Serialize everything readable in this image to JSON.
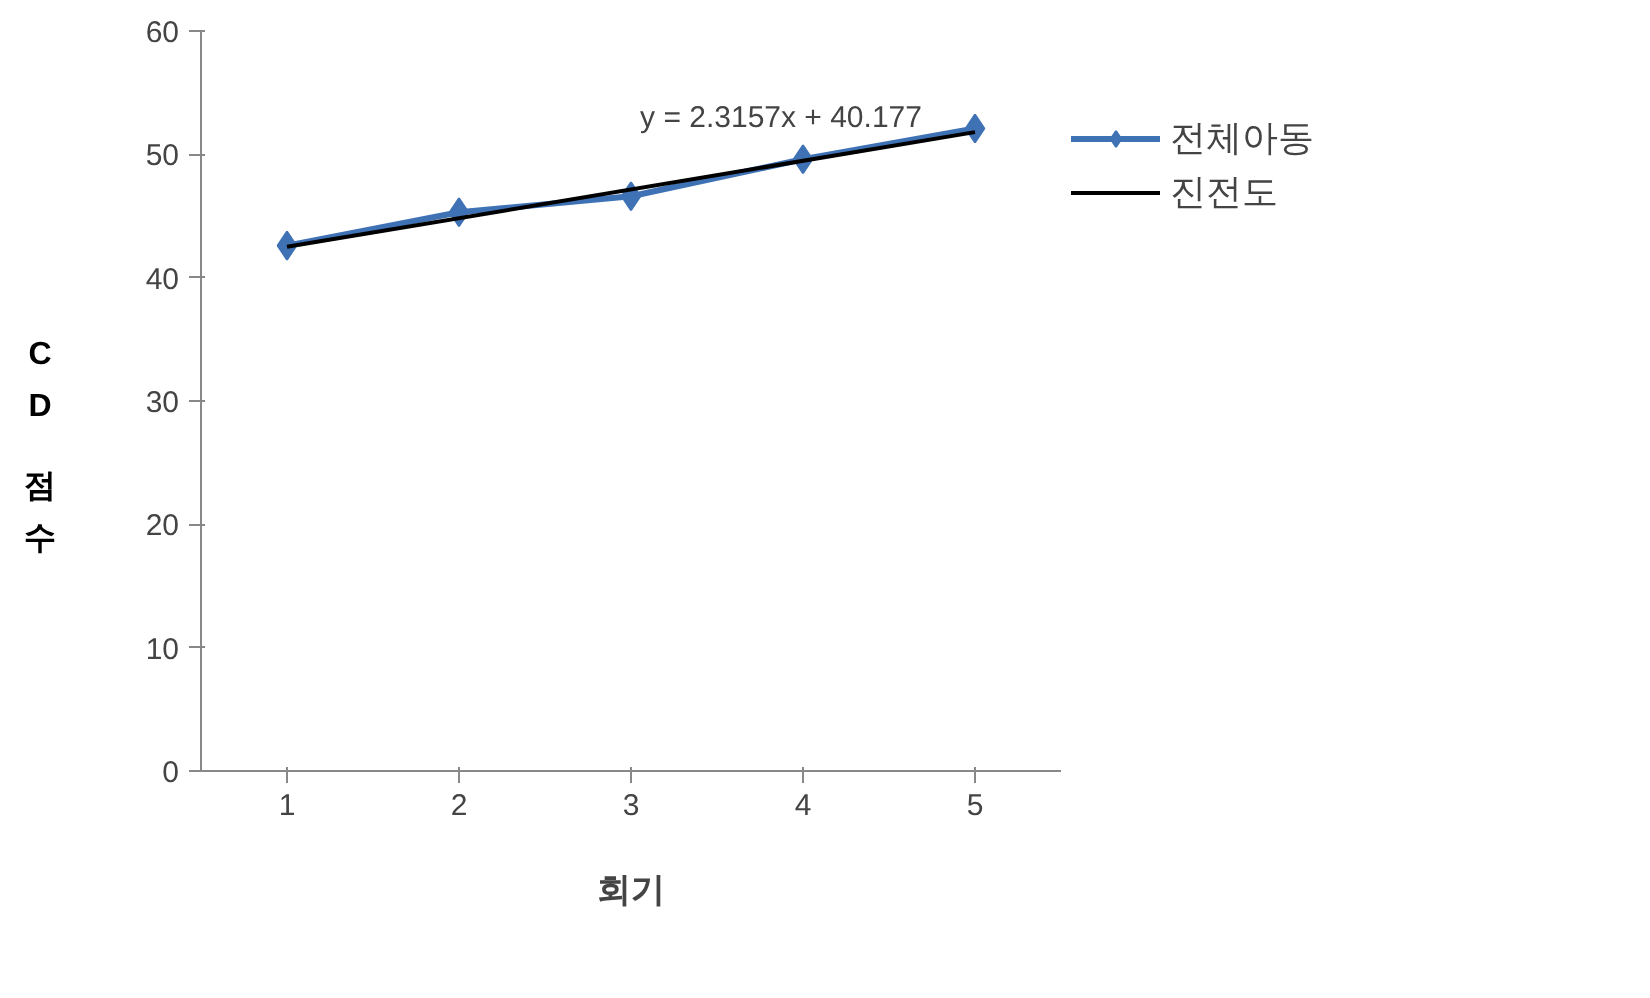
{
  "chart_data": {
    "type": "line",
    "xlabel": "회기",
    "ylabel": "CD 점수",
    "x": [
      1,
      2,
      3,
      4,
      5
    ],
    "series": [
      {
        "name": "전체아동",
        "color": "#3f72b5",
        "values": [
          42.6,
          45.3,
          46.6,
          49.6,
          52.1
        ],
        "marker": "diamond"
      },
      {
        "name": "진전도",
        "type": "line",
        "color": "#000000",
        "x": [
          1,
          5
        ],
        "values": [
          42.5,
          51.8
        ],
        "marker": "none"
      }
    ],
    "xlim": [
      0.5,
      5.5
    ],
    "xticks": [
      1,
      2,
      3,
      4,
      5
    ],
    "ylim": [
      0,
      60
    ],
    "yticks": [
      0,
      10,
      20,
      30,
      40,
      50,
      60
    ],
    "annotations": [
      "y = 2.3157x + 40.177"
    ],
    "grid": false,
    "legend": "right"
  }
}
